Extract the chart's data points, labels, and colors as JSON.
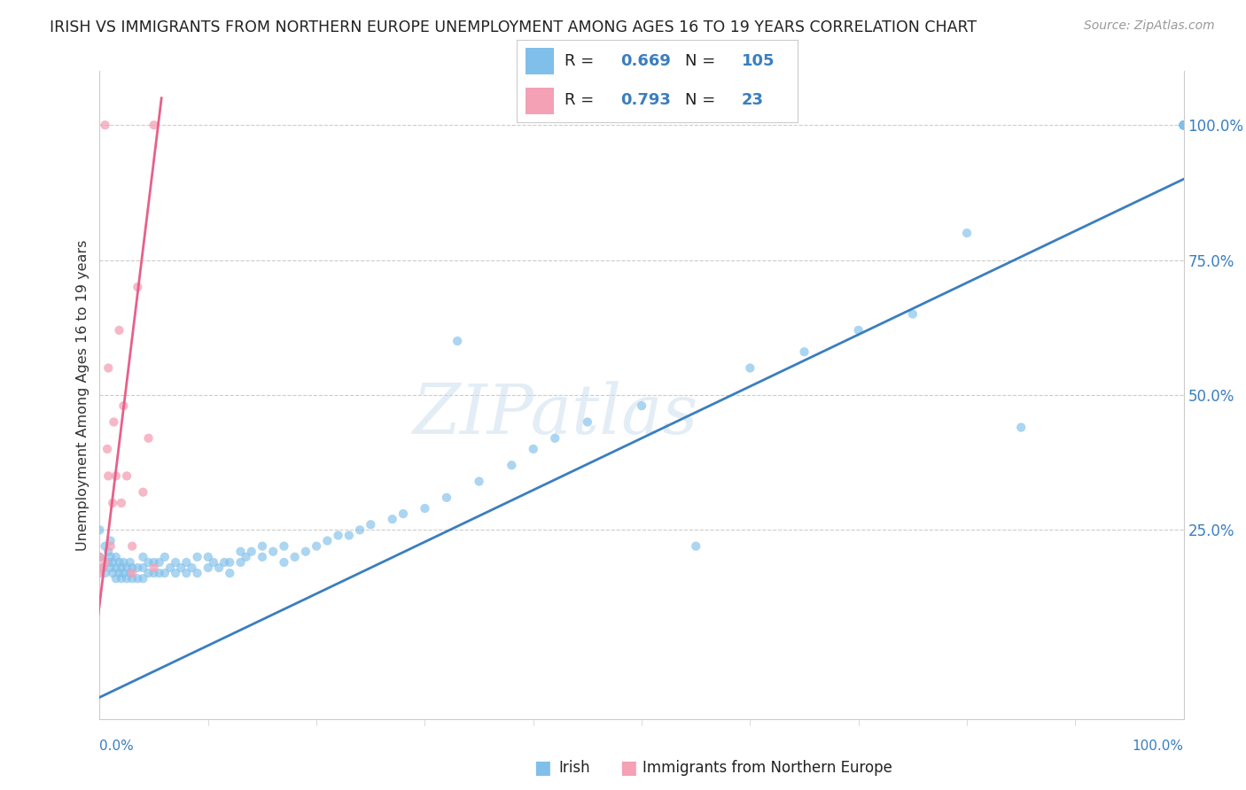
{
  "title": "IRISH VS IMMIGRANTS FROM NORTHERN EUROPE UNEMPLOYMENT AMONG AGES 16 TO 19 YEARS CORRELATION CHART",
  "source": "Source: ZipAtlas.com",
  "ylabel": "Unemployment Among Ages 16 to 19 years",
  "legend_blue_r": "0.669",
  "legend_blue_n": "105",
  "legend_pink_r": "0.793",
  "legend_pink_n": "23",
  "blue_color": "#7fbfea",
  "pink_color": "#f4a0b5",
  "blue_line_color": "#3a7ebf",
  "pink_line_color": "#e8608a",
  "blue_label": "Irish",
  "pink_label": "Immigrants from Northern Europe",
  "watermark": "ZIPatlas",
  "blue_x": [
    0.0,
    0.0,
    0.003,
    0.005,
    0.005,
    0.008,
    0.008,
    0.01,
    0.01,
    0.01,
    0.012,
    0.012,
    0.015,
    0.015,
    0.015,
    0.018,
    0.018,
    0.02,
    0.02,
    0.022,
    0.022,
    0.025,
    0.025,
    0.028,
    0.028,
    0.03,
    0.03,
    0.035,
    0.035,
    0.04,
    0.04,
    0.04,
    0.045,
    0.045,
    0.05,
    0.05,
    0.055,
    0.055,
    0.06,
    0.06,
    0.065,
    0.07,
    0.07,
    0.075,
    0.08,
    0.08,
    0.085,
    0.09,
    0.09,
    0.1,
    0.1,
    0.105,
    0.11,
    0.115,
    0.12,
    0.12,
    0.13,
    0.13,
    0.135,
    0.14,
    0.15,
    0.15,
    0.16,
    0.17,
    0.17,
    0.18,
    0.19,
    0.2,
    0.21,
    0.22,
    0.23,
    0.24,
    0.25,
    0.27,
    0.28,
    0.3,
    0.32,
    0.33,
    0.35,
    0.38,
    0.4,
    0.42,
    0.45,
    0.5,
    0.55,
    0.6,
    0.65,
    0.7,
    0.75,
    0.8,
    0.85,
    1.0,
    1.0,
    1.0,
    1.0,
    1.0,
    1.0,
    1.0,
    1.0,
    1.0,
    1.0,
    1.0,
    1.0,
    1.0,
    1.0
  ],
  "blue_y": [
    0.2,
    0.25,
    0.18,
    0.17,
    0.22,
    0.19,
    0.21,
    0.18,
    0.2,
    0.23,
    0.17,
    0.19,
    0.16,
    0.18,
    0.2,
    0.17,
    0.19,
    0.16,
    0.18,
    0.17,
    0.19,
    0.16,
    0.18,
    0.17,
    0.19,
    0.16,
    0.18,
    0.16,
    0.18,
    0.16,
    0.18,
    0.2,
    0.17,
    0.19,
    0.17,
    0.19,
    0.17,
    0.19,
    0.17,
    0.2,
    0.18,
    0.17,
    0.19,
    0.18,
    0.17,
    0.19,
    0.18,
    0.17,
    0.2,
    0.18,
    0.2,
    0.19,
    0.18,
    0.19,
    0.17,
    0.19,
    0.19,
    0.21,
    0.2,
    0.21,
    0.2,
    0.22,
    0.21,
    0.19,
    0.22,
    0.2,
    0.21,
    0.22,
    0.23,
    0.24,
    0.24,
    0.25,
    0.26,
    0.27,
    0.28,
    0.29,
    0.31,
    0.6,
    0.34,
    0.37,
    0.4,
    0.42,
    0.45,
    0.48,
    0.22,
    0.55,
    0.58,
    0.62,
    0.65,
    0.8,
    0.44,
    1.0,
    1.0,
    1.0,
    1.0,
    1.0,
    1.0,
    1.0,
    1.0,
    1.0,
    1.0,
    1.0,
    1.0,
    1.0,
    1.0
  ],
  "pink_x": [
    0.0,
    0.0,
    0.003,
    0.005,
    0.005,
    0.007,
    0.008,
    0.008,
    0.01,
    0.012,
    0.013,
    0.015,
    0.018,
    0.02,
    0.022,
    0.025,
    0.03,
    0.03,
    0.035,
    0.04,
    0.045,
    0.05,
    0.05
  ],
  "pink_y": [
    0.17,
    0.2,
    0.18,
    0.19,
    1.0,
    0.4,
    0.35,
    0.55,
    0.22,
    0.3,
    0.45,
    0.35,
    0.62,
    0.3,
    0.48,
    0.35,
    0.17,
    0.22,
    0.7,
    0.32,
    0.42,
    0.18,
    1.0
  ],
  "blue_line": {
    "x0": 0.0,
    "y0": -0.06,
    "x1": 1.0,
    "y1": 0.9
  },
  "pink_line": {
    "x0": -0.01,
    "y0": -0.05,
    "x1": 0.057,
    "y1": 1.05
  },
  "xlim": [
    0.0,
    1.0
  ],
  "ylim": [
    -0.1,
    1.1
  ],
  "yticks": [
    0.0,
    0.25,
    0.5,
    0.75,
    1.0
  ],
  "ytick_labels": [
    "",
    "25.0%",
    "50.0%",
    "75.0%",
    "100.0%"
  ],
  "xtick_labels": [
    "0.0%",
    "100.0%"
  ]
}
